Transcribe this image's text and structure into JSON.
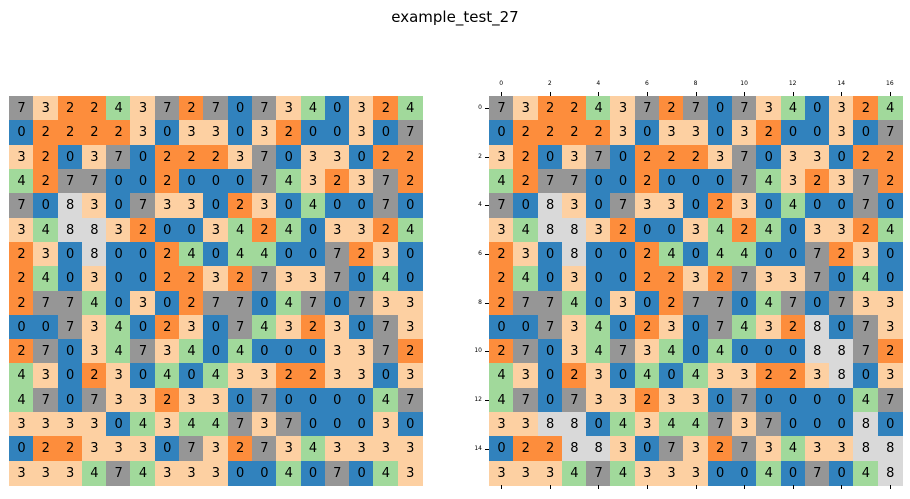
{
  "title": "example_test_27",
  "palette": {
    "0": "#3182bd",
    "2": "#fd8d3c",
    "3": "#fdd0a2",
    "4": "#a1d99b",
    "7": "#969696",
    "8": "#d9d9d9"
  },
  "x_ticks": [
    "0",
    "2",
    "4",
    "6",
    "8",
    "10",
    "12",
    "14",
    "16"
  ],
  "y_ticks": [
    "0",
    "2",
    "4",
    "6",
    "8",
    "10",
    "12",
    "14"
  ],
  "left_grid": [
    [
      7,
      3,
      2,
      2,
      4,
      3,
      7,
      2,
      7,
      0,
      7,
      3,
      4,
      0,
      3,
      2,
      4
    ],
    [
      0,
      2,
      2,
      2,
      2,
      3,
      0,
      3,
      3,
      0,
      3,
      2,
      0,
      0,
      3,
      0,
      7
    ],
    [
      3,
      2,
      0,
      3,
      7,
      0,
      2,
      2,
      2,
      3,
      7,
      0,
      3,
      3,
      0,
      2,
      2
    ],
    [
      4,
      2,
      7,
      7,
      0,
      0,
      2,
      0,
      0,
      0,
      7,
      4,
      3,
      2,
      3,
      7,
      2
    ],
    [
      7,
      0,
      8,
      3,
      0,
      7,
      3,
      3,
      0,
      2,
      3,
      0,
      4,
      0,
      0,
      7,
      0
    ],
    [
      3,
      4,
      8,
      8,
      3,
      2,
      0,
      0,
      3,
      4,
      2,
      4,
      0,
      3,
      3,
      2,
      4
    ],
    [
      2,
      3,
      0,
      8,
      0,
      0,
      2,
      4,
      0,
      4,
      4,
      0,
      0,
      7,
      2,
      3,
      0
    ],
    [
      2,
      4,
      0,
      3,
      0,
      0,
      2,
      2,
      3,
      2,
      7,
      3,
      3,
      7,
      0,
      4,
      0
    ],
    [
      2,
      7,
      7,
      4,
      0,
      3,
      0,
      2,
      7,
      7,
      0,
      4,
      7,
      0,
      7,
      3,
      3
    ],
    [
      0,
      0,
      7,
      3,
      4,
      0,
      2,
      3,
      0,
      7,
      4,
      3,
      2,
      3,
      0,
      7,
      3
    ],
    [
      2,
      7,
      0,
      3,
      4,
      7,
      3,
      4,
      0,
      4,
      0,
      0,
      0,
      3,
      3,
      7,
      2
    ],
    [
      4,
      3,
      0,
      2,
      3,
      0,
      4,
      0,
      4,
      3,
      3,
      2,
      2,
      3,
      3,
      0,
      3
    ],
    [
      4,
      7,
      0,
      7,
      3,
      3,
      2,
      3,
      3,
      0,
      7,
      0,
      0,
      0,
      0,
      4,
      7
    ],
    [
      3,
      3,
      3,
      3,
      0,
      4,
      3,
      4,
      4,
      7,
      3,
      7,
      0,
      0,
      0,
      3,
      0
    ],
    [
      0,
      2,
      2,
      3,
      3,
      3,
      0,
      7,
      3,
      2,
      7,
      3,
      4,
      3,
      3,
      3,
      3
    ],
    [
      3,
      3,
      3,
      4,
      7,
      4,
      3,
      3,
      3,
      0,
      0,
      4,
      0,
      7,
      0,
      4,
      3
    ]
  ],
  "right_grid": [
    [
      7,
      3,
      2,
      2,
      4,
      3,
      7,
      2,
      7,
      0,
      7,
      3,
      4,
      0,
      3,
      2,
      4
    ],
    [
      0,
      2,
      2,
      2,
      2,
      3,
      0,
      3,
      3,
      0,
      3,
      2,
      0,
      0,
      3,
      0,
      7
    ],
    [
      3,
      2,
      0,
      3,
      7,
      0,
      2,
      2,
      2,
      3,
      7,
      0,
      3,
      3,
      0,
      2,
      2
    ],
    [
      4,
      2,
      7,
      7,
      0,
      0,
      2,
      0,
      0,
      0,
      7,
      4,
      3,
      2,
      3,
      7,
      2
    ],
    [
      7,
      0,
      8,
      3,
      0,
      7,
      3,
      3,
      0,
      2,
      3,
      0,
      4,
      0,
      0,
      7,
      0
    ],
    [
      3,
      4,
      8,
      8,
      3,
      2,
      0,
      0,
      3,
      4,
      2,
      4,
      0,
      3,
      3,
      2,
      4
    ],
    [
      2,
      3,
      0,
      8,
      0,
      0,
      2,
      4,
      0,
      4,
      4,
      0,
      0,
      7,
      2,
      3,
      0
    ],
    [
      2,
      4,
      0,
      3,
      0,
      0,
      2,
      2,
      3,
      2,
      7,
      3,
      3,
      7,
      0,
      4,
      0
    ],
    [
      2,
      7,
      7,
      4,
      0,
      3,
      0,
      2,
      7,
      7,
      0,
      4,
      7,
      0,
      7,
      3,
      3
    ],
    [
      0,
      0,
      7,
      3,
      4,
      0,
      2,
      3,
      0,
      7,
      4,
      3,
      2,
      8,
      0,
      7,
      3
    ],
    [
      2,
      7,
      0,
      3,
      4,
      7,
      3,
      4,
      0,
      4,
      0,
      0,
      0,
      8,
      8,
      7,
      2
    ],
    [
      4,
      3,
      0,
      2,
      3,
      0,
      4,
      0,
      4,
      3,
      3,
      2,
      2,
      3,
      8,
      0,
      3
    ],
    [
      4,
      7,
      0,
      7,
      3,
      3,
      2,
      3,
      3,
      0,
      7,
      0,
      0,
      0,
      0,
      4,
      7
    ],
    [
      3,
      3,
      8,
      8,
      0,
      4,
      3,
      4,
      4,
      7,
      3,
      7,
      0,
      0,
      0,
      8,
      0
    ],
    [
      0,
      2,
      2,
      8,
      8,
      3,
      0,
      7,
      3,
      2,
      7,
      3,
      4,
      3,
      3,
      8,
      8
    ],
    [
      3,
      3,
      3,
      4,
      7,
      4,
      3,
      3,
      3,
      0,
      0,
      4,
      0,
      7,
      0,
      4,
      8
    ]
  ]
}
